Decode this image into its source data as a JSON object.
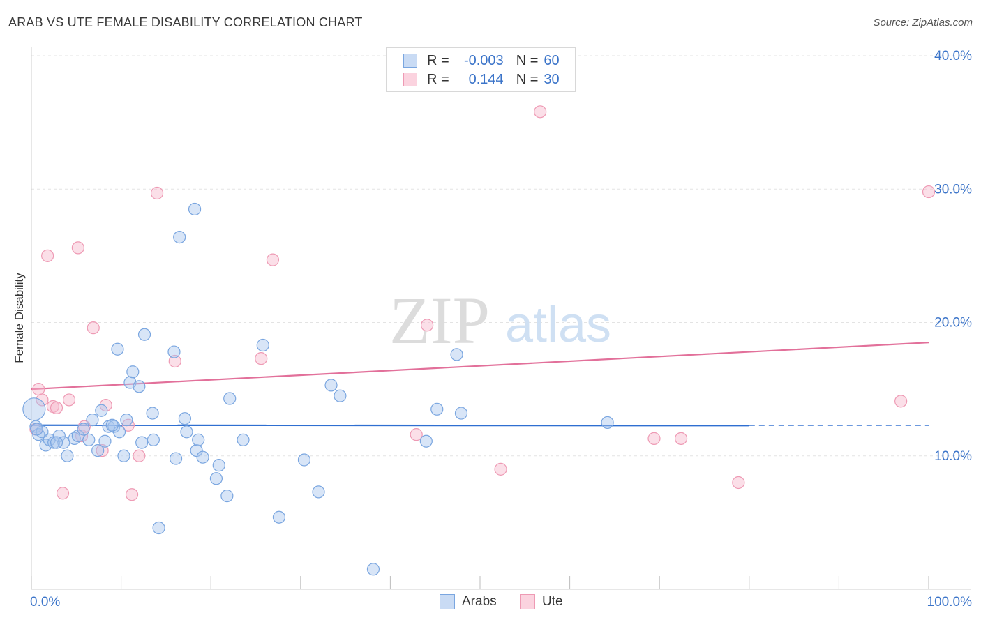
{
  "title": "ARAB VS UTE FEMALE DISABILITY CORRELATION CHART",
  "source": "Source: ZipAtlas.com",
  "watermark": {
    "zip": "ZIP",
    "atlas": "atlas"
  },
  "legend_stats": [
    {
      "r_label": "R =",
      "r_value": "-0.003",
      "n_label": "N =",
      "n_value": "60",
      "color": "#a9c6ee"
    },
    {
      "r_label": "R =",
      "r_value": "0.144",
      "n_label": "N =",
      "n_value": "30",
      "color": "#f6b9cb"
    }
  ],
  "colors": {
    "arabs_fill": "rgba(169,198,238,0.45)",
    "arabs_stroke": "#7aa6e0",
    "arabs_line": "#2f6fd1",
    "ute_fill": "rgba(246,185,203,0.45)",
    "ute_stroke": "#ee9ab4",
    "ute_line": "#e2709a",
    "tick_label": "#3b74c9"
  },
  "chart_data": {
    "type": "scatter",
    "xlabel": "",
    "ylabel": "Female Disability",
    "xlim": [
      0,
      100
    ],
    "ylim": [
      0,
      40
    ],
    "x_tick_labels": [
      "0.0%",
      "100.0%"
    ],
    "y_ticks": [
      10,
      20,
      30,
      40
    ],
    "y_tick_labels": [
      "10.0%",
      "20.0%",
      "30.0%",
      "40.0%"
    ],
    "grid": true,
    "legend": "bottom-center",
    "series": [
      {
        "name": "Arabs",
        "r": -0.003,
        "n": 60,
        "trend": {
          "x0": 0,
          "y0": 12.3,
          "x1": 80,
          "y1": 12.27,
          "dashed_to": 100
        },
        "points": [
          [
            0.5,
            12.2
          ],
          [
            0.8,
            11.6
          ],
          [
            1.2,
            11.8
          ],
          [
            1.6,
            10.8
          ],
          [
            2.0,
            11.2
          ],
          [
            2.5,
            11.0
          ],
          [
            3.1,
            11.5
          ],
          [
            3.6,
            11.0
          ],
          [
            4.0,
            10.0
          ],
          [
            4.8,
            11.3
          ],
          [
            5.2,
            11.5
          ],
          [
            5.8,
            12.0
          ],
          [
            6.4,
            11.2
          ],
          [
            6.8,
            12.7
          ],
          [
            7.4,
            10.4
          ],
          [
            7.8,
            13.4
          ],
          [
            8.2,
            11.1
          ],
          [
            8.6,
            12.2
          ],
          [
            9.2,
            12.2
          ],
          [
            9.6,
            18.0
          ],
          [
            9.8,
            11.8
          ],
          [
            10.3,
            10.0
          ],
          [
            10.6,
            12.7
          ],
          [
            11.0,
            15.5
          ],
          [
            11.3,
            16.3
          ],
          [
            12.0,
            15.2
          ],
          [
            12.3,
            11.0
          ],
          [
            12.6,
            19.1
          ],
          [
            13.5,
            13.2
          ],
          [
            13.6,
            11.2
          ],
          [
            14.2,
            4.6
          ],
          [
            15.9,
            17.8
          ],
          [
            16.1,
            9.8
          ],
          [
            16.5,
            26.4
          ],
          [
            17.1,
            12.8
          ],
          [
            17.3,
            11.8
          ],
          [
            18.2,
            28.5
          ],
          [
            18.4,
            10.4
          ],
          [
            18.6,
            11.2
          ],
          [
            19.1,
            9.9
          ],
          [
            20.6,
            8.3
          ],
          [
            20.9,
            9.3
          ],
          [
            21.8,
            7.0
          ],
          [
            22.1,
            14.3
          ],
          [
            23.6,
            11.2
          ],
          [
            25.8,
            18.3
          ],
          [
            27.6,
            5.4
          ],
          [
            30.4,
            9.7
          ],
          [
            32.0,
            7.3
          ],
          [
            33.4,
            15.3
          ],
          [
            34.4,
            14.5
          ],
          [
            38.1,
            1.5
          ],
          [
            44.0,
            11.1
          ],
          [
            45.2,
            13.5
          ],
          [
            47.4,
            17.6
          ],
          [
            47.9,
            13.2
          ],
          [
            64.2,
            12.5
          ],
          [
            0.6,
            12.0
          ],
          [
            2.8,
            11.0
          ],
          [
            9.0,
            12.3
          ]
        ]
      },
      {
        "name": "Ute",
        "r": 0.144,
        "n": 30,
        "trend": {
          "x0": 0,
          "y0": 15.0,
          "x1": 100,
          "y1": 18.5
        },
        "points": [
          [
            0.5,
            12.0
          ],
          [
            0.8,
            15.0
          ],
          [
            1.2,
            14.2
          ],
          [
            1.8,
            25.0
          ],
          [
            2.4,
            13.7
          ],
          [
            2.8,
            13.6
          ],
          [
            3.5,
            7.2
          ],
          [
            4.2,
            14.2
          ],
          [
            5.2,
            25.6
          ],
          [
            5.6,
            11.5
          ],
          [
            5.9,
            12.2
          ],
          [
            6.9,
            19.6
          ],
          [
            7.9,
            10.4
          ],
          [
            8.3,
            13.8
          ],
          [
            10.8,
            12.3
          ],
          [
            11.2,
            7.1
          ],
          [
            12.0,
            10.0
          ],
          [
            14.0,
            29.7
          ],
          [
            16.0,
            17.1
          ],
          [
            25.6,
            17.3
          ],
          [
            26.9,
            24.7
          ],
          [
            42.9,
            11.6
          ],
          [
            44.1,
            19.8
          ],
          [
            52.3,
            9.0
          ],
          [
            56.7,
            35.8
          ],
          [
            69.4,
            11.3
          ],
          [
            72.4,
            11.3
          ],
          [
            78.8,
            8.0
          ],
          [
            96.9,
            14.1
          ],
          [
            100.0,
            29.8
          ]
        ]
      }
    ]
  },
  "bottom_legend": [
    {
      "label": "Arabs",
      "color": "#a9c6ee"
    },
    {
      "label": "Ute",
      "color": "#f6b9cb"
    }
  ]
}
